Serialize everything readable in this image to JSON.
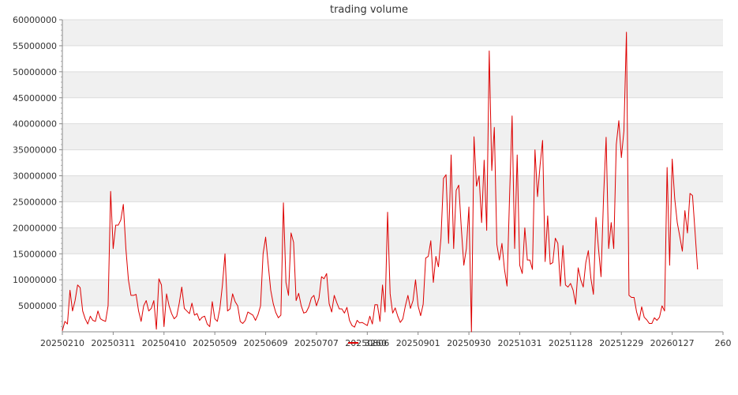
{
  "chart_data": {
    "type": "line",
    "title": "trading volume",
    "xlabel": "",
    "ylabel": "",
    "ylim": [
      0,
      60000000
    ],
    "y_ticks": [
      5000000,
      10000000,
      15000000,
      20000000,
      25000000,
      30000000,
      35000000,
      40000000,
      45000000,
      50000000,
      55000000,
      60000000
    ],
    "x_ticks": [
      {
        "index": 0,
        "label": "20250210"
      },
      {
        "index": 20,
        "label": "20250311"
      },
      {
        "index": 40,
        "label": "20250410"
      },
      {
        "index": 60,
        "label": "20250509"
      },
      {
        "index": 80,
        "label": "20250609"
      },
      {
        "index": 100,
        "label": "20250707"
      },
      {
        "index": 120,
        "label": "20250806"
      },
      {
        "index": 140,
        "label": "20250901"
      },
      {
        "index": 160,
        "label": "20250930"
      },
      {
        "index": 180,
        "label": "20251031"
      },
      {
        "index": 200,
        "label": "20251128"
      },
      {
        "index": 220,
        "label": "20251229"
      },
      {
        "index": 240,
        "label": "20260127"
      },
      {
        "index": 260,
        "label": "260"
      }
    ],
    "x_range": [
      0,
      260
    ],
    "grid": "horizontal bands",
    "legend_position": "bottom-center",
    "series": [
      {
        "name": "3260",
        "color": "#dd0000",
        "values": [
          200000,
          2000000,
          1500000,
          8000000,
          4000000,
          6000000,
          9000000,
          8500000,
          4000000,
          2500000,
          1500000,
          3000000,
          2200000,
          2000000,
          4000000,
          2500000,
          2200000,
          2000000,
          5000000,
          27000000,
          16000000,
          20500000,
          20500000,
          21500000,
          24500000,
          16000000,
          10000000,
          7000000,
          7000000,
          7200000,
          4000000,
          2000000,
          5000000,
          6000000,
          4000000,
          4500000,
          6000000,
          500000,
          10200000,
          9000000,
          1000000,
          7300000,
          5000000,
          3500000,
          2500000,
          3000000,
          5500000,
          8600000,
          4500000,
          4000000,
          3500000,
          5500000,
          3200000,
          3500000,
          2200000,
          2800000,
          3000000,
          1500000,
          1000000,
          5800000,
          2500000,
          2000000,
          4500000,
          9000000,
          15000000,
          4000000,
          4400000,
          7300000,
          5800000,
          5000000,
          2000000,
          1600000,
          2200000,
          3800000,
          3500000,
          3200000,
          2200000,
          3300000,
          5000000,
          15000000,
          18200000,
          13000000,
          8000000,
          5400000,
          3700000,
          2700000,
          3200000,
          24800000,
          9500000,
          7000000,
          19000000,
          17200000,
          6000000,
          7400000,
          5000000,
          3600000,
          3800000,
          4800000,
          6500000,
          7000000,
          5000000,
          6500000,
          10600000,
          10200000,
          11200000,
          5400000,
          3800000,
          7000000,
          5600000,
          4400000,
          4400000,
          3600000,
          4700000,
          2200000,
          1200000,
          900000,
          2200000,
          1700000,
          1800000,
          1500000,
          1200000,
          3000000,
          1500000,
          5200000,
          5200000,
          2000000,
          9000000,
          3800000,
          23000000,
          7300000,
          3600000,
          4600000,
          3000000,
          1800000,
          2500000,
          5000000,
          7000000,
          4500000,
          6000000,
          10000000,
          5000000,
          3100000,
          5300000,
          14200000,
          14500000,
          17500000,
          9500000,
          14500000,
          12500000,
          18000000,
          29500000,
          30200000,
          17000000,
          34000000,
          16000000,
          27200000,
          28200000,
          20000000,
          12800000,
          16000000,
          24000000,
          0,
          37500000,
          28000000,
          30000000,
          21000000,
          33000000,
          19500000,
          54000000,
          31000000,
          39300000,
          16800000,
          13800000,
          17000000,
          12000000,
          8800000,
          26000000,
          41500000,
          16000000,
          34000000,
          12800000,
          11200000,
          20000000,
          13800000,
          13800000,
          12000000,
          35000000,
          26000000,
          32000000,
          36800000,
          13500000,
          22300000,
          13000000,
          13300000,
          18000000,
          17000000,
          8800000,
          16600000,
          9000000,
          8600000,
          9300000,
          8000000,
          5300000,
          12300000,
          10000000,
          8600000,
          13300000,
          15600000,
          10300000,
          7200000,
          22000000,
          16000000,
          10600000,
          26000000,
          37400000,
          16000000,
          21000000,
          16000000,
          36000000,
          40600000,
          33500000,
          38600000,
          57600000,
          7000000,
          6600000,
          6600000,
          3800000,
          2200000,
          4800000,
          2800000,
          2300000,
          1600000,
          1600000,
          2700000,
          2200000,
          2800000,
          5000000,
          4000000,
          31600000,
          12800000,
          33200000,
          25600000,
          21000000,
          18300000,
          15500000,
          23300000,
          19000000,
          26600000,
          26200000,
          19200000,
          12000000
        ]
      }
    ]
  }
}
